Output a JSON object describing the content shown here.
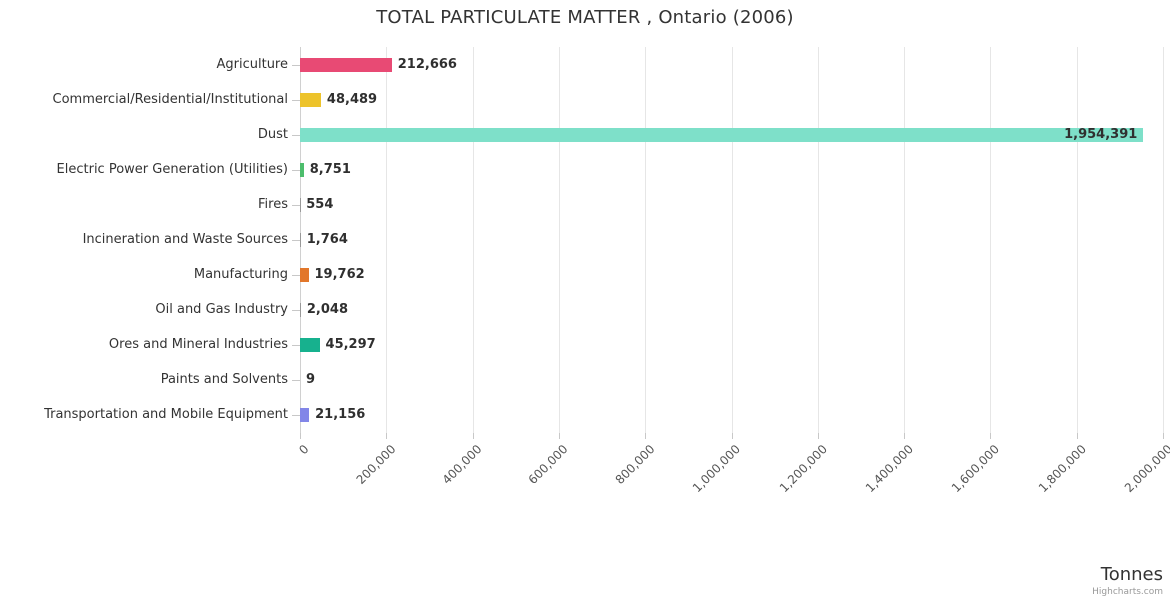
{
  "chart_data": {
    "type": "bar",
    "orientation": "horizontal",
    "title": "TOTAL PARTICULATE MATTER , Ontario (2006)",
    "xlabel": "Tonnes",
    "credit": "Highcharts.com",
    "grid": true,
    "legend": "none",
    "axis_range": [
      0,
      2000000
    ],
    "axis_ticks": [
      0,
      200000,
      400000,
      600000,
      800000,
      1000000,
      1200000,
      1400000,
      1600000,
      1800000,
      2000000
    ],
    "axis_tick_labels": [
      "0",
      "200,000",
      "400,000",
      "600,000",
      "800,000",
      "1,000,000",
      "1,200,000",
      "1,400,000",
      "1,600,000",
      "1,800,000",
      "2,000,000"
    ],
    "categories": [
      "Agriculture",
      "Commercial/Residential/Institutional",
      "Dust",
      "Electric Power Generation (Utilities)",
      "Fires",
      "Incineration and Waste Sources",
      "Manufacturing",
      "Oil and Gas Industry",
      "Ores and Mineral Industries",
      "Paints and Solvents",
      "Transportation and Mobile Equipment"
    ],
    "values": [
      212666,
      48489,
      1954391,
      8751,
      554,
      1764,
      19762,
      2048,
      45297,
      9,
      21156
    ],
    "value_labels": [
      "212,666",
      "48,489",
      "1,954,391",
      "8,751",
      "554",
      "1,764",
      "19,762",
      "2,048",
      "45,297",
      "9",
      "21,156"
    ],
    "colors": [
      "#e84a74",
      "#edc32b",
      "#7ee0c9",
      "#4dbd6c",
      "#999999",
      "#999999",
      "#e2772b",
      "#999999",
      "#17b18e",
      "#999999",
      "#8286e8"
    ]
  }
}
